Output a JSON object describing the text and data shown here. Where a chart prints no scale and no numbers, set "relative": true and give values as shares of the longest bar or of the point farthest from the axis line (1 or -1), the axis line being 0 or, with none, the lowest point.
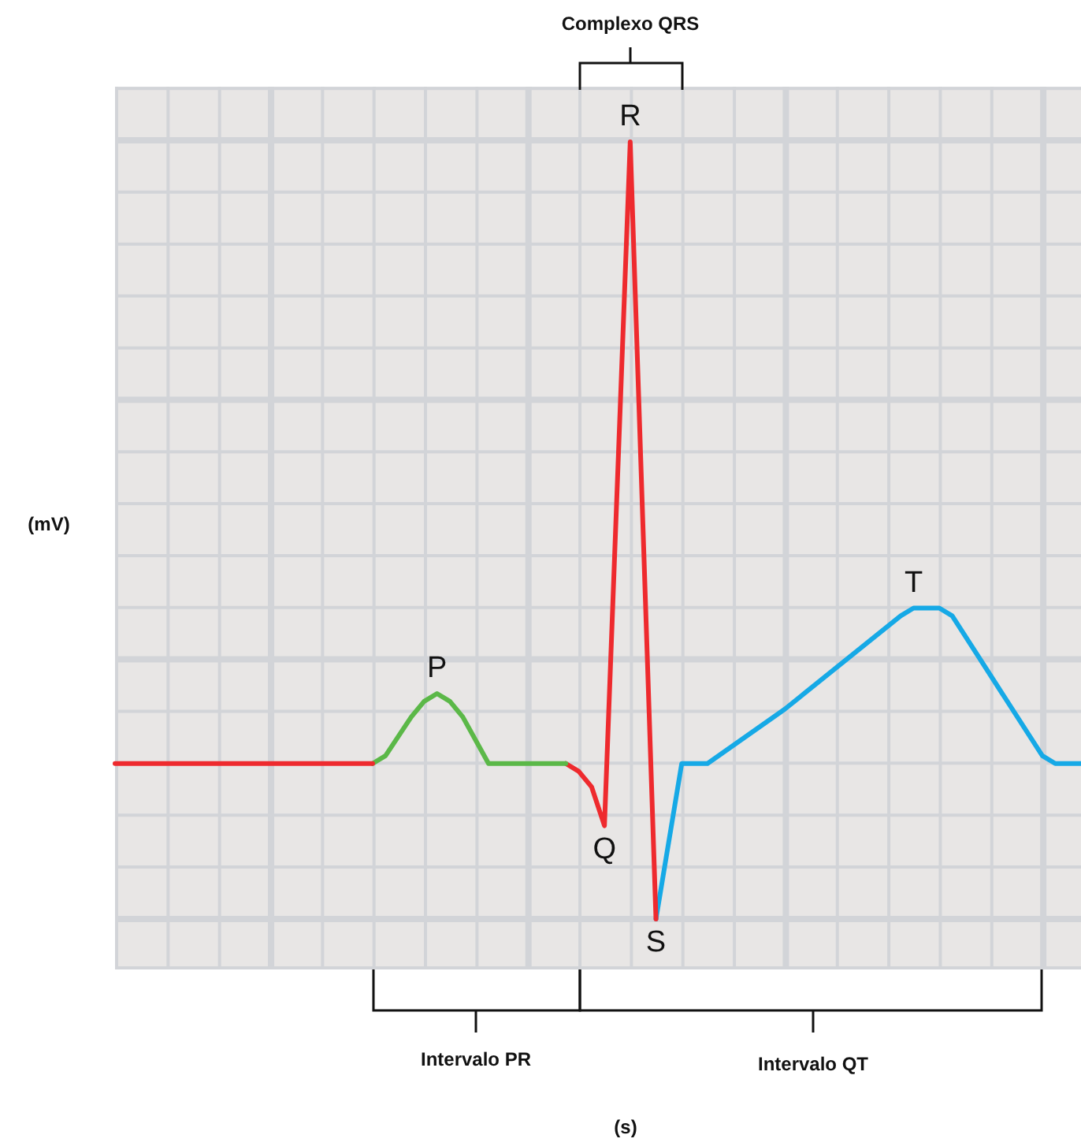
{
  "chart_data": {
    "type": "line",
    "relative": true,
    "ylabel": "(mV)",
    "grid": true,
    "legend": false,
    "marker": "none",
    "line_style": "solid",
    "categories": [
      null,
      null,
      null,
      null,
      null,
      null,
      null,
      null,
      null,
      null,
      null,
      null,
      null,
      null,
      null,
      null,
      null,
      null,
      null,
      null,
      null,
      null,
      null,
      null,
      null,
      null,
      null,
      null,
      null,
      null,
      null,
      null,
      null,
      null,
      null,
      null,
      null,
      null,
      null,
      null,
      null,
      null,
      null,
      null,
      null,
      null,
      null,
      null,
      null,
      null,
      null,
      null,
      null,
      null,
      null,
      null,
      null,
      null,
      null,
      null,
      null,
      null,
      null,
      null,
      null,
      null,
      null,
      null,
      null,
      null,
      null,
      null,
      null,
      null,
      null,
      null
    ],
    "series": [
      {
        "color": "#ee2a2e",
        "values": [
          0.2,
          null,
          null,
          null,
          null,
          null,
          null,
          null,
          null,
          null,
          null,
          null,
          null,
          null,
          null,
          null,
          null,
          null,
          null,
          null,
          0.2,
          null,
          null,
          null,
          null,
          null,
          null,
          null,
          null,
          null,
          null,
          null,
          null,
          null,
          null,
          null,
          null,
          null,
          null,
          null,
          null,
          null,
          null,
          null,
          null,
          null,
          null,
          null,
          null,
          null,
          null,
          null,
          null,
          null,
          null,
          null,
          null,
          null,
          null,
          null,
          null,
          null,
          null,
          null,
          null,
          null,
          null,
          null,
          null,
          null,
          null,
          null,
          null,
          null,
          null,
          null
        ]
      },
      {
        "color": "#5bb848",
        "values": [
          null,
          null,
          null,
          null,
          null,
          null,
          null,
          null,
          null,
          null,
          null,
          null,
          null,
          null,
          null,
          null,
          null,
          null,
          null,
          null,
          0.2,
          0.21,
          null,
          0.26,
          0.28,
          0.29,
          0.28,
          0.26,
          null,
          0.2,
          0.2,
          null,
          null,
          null,
          null,
          0.2,
          null,
          null,
          null,
          null,
          null,
          null,
          null,
          null,
          null,
          null,
          null,
          null,
          null,
          null,
          null,
          null,
          null,
          null,
          null,
          null,
          null,
          null,
          null,
          null,
          null,
          null,
          null,
          null,
          null,
          null,
          null,
          null,
          null,
          null,
          null,
          null,
          null,
          null,
          null,
          null
        ]
      },
      {
        "color": "#ee2a2e",
        "values": [
          null,
          null,
          null,
          null,
          null,
          null,
          null,
          null,
          null,
          null,
          null,
          null,
          null,
          null,
          null,
          null,
          null,
          null,
          null,
          null,
          null,
          null,
          null,
          null,
          null,
          null,
          null,
          null,
          null,
          null,
          null,
          null,
          null,
          null,
          null,
          0.2,
          0.19,
          0.17,
          0.12,
          null,
          1,
          null,
          0,
          null,
          null,
          null,
          null,
          null,
          null,
          null,
          null,
          null,
          null,
          null,
          null,
          null,
          null,
          null,
          null,
          null,
          null,
          null,
          null,
          null,
          null,
          null,
          null,
          null,
          null,
          null,
          null,
          null,
          null,
          null,
          null,
          null
        ]
      },
      {
        "color": "#16a9e6",
        "values": [
          null,
          null,
          null,
          null,
          null,
          null,
          null,
          null,
          null,
          null,
          null,
          null,
          null,
          null,
          null,
          null,
          null,
          null,
          null,
          null,
          null,
          null,
          null,
          null,
          null,
          null,
          null,
          null,
          null,
          null,
          null,
          null,
          null,
          null,
          null,
          null,
          null,
          null,
          null,
          null,
          null,
          null,
          0,
          null,
          0.2,
          null,
          0.2,
          null,
          null,
          null,
          null,
          null,
          0.27,
          null,
          null,
          null,
          null,
          null,
          null,
          null,
          null,
          0.39,
          0.4,
          null,
          0.4,
          0.39,
          null,
          null,
          null,
          null,
          null,
          null,
          0.21,
          0.2,
          null,
          0.2
        ]
      }
    ],
    "annotations": [
      "Complexo QRS",
      "Intervalo PR",
      "Intervalo QT",
      "(s)",
      {
        "text": "P",
        "y": 0.29
      },
      {
        "text": "Q",
        "y": 0.12
      },
      {
        "text": "R",
        "y": 1
      },
      {
        "text": "S",
        "y": 0
      },
      {
        "text": "T",
        "y": 0.4
      }
    ]
  }
}
